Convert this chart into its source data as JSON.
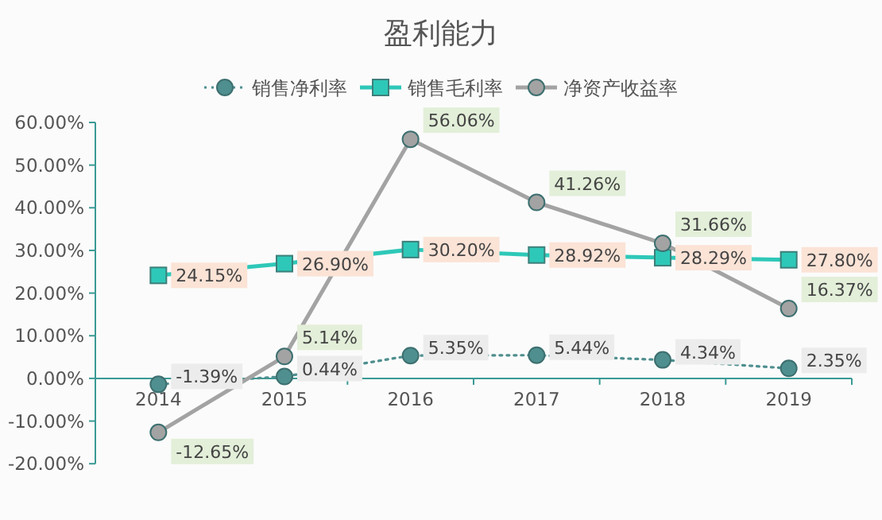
{
  "chart_data": {
    "type": "line",
    "title": "盈利能力",
    "categories": [
      "2014",
      "2015",
      "2016",
      "2017",
      "2018",
      "2019"
    ],
    "series": [
      {
        "name": "销售净利率",
        "color": "#4f8f8f",
        "marker": "circle",
        "line_style": "dotted",
        "values": [
          -1.39,
          0.44,
          5.35,
          5.44,
          4.34,
          2.35
        ],
        "value_labels": [
          "-1.39%",
          "0.44%",
          "5.35%",
          "5.44%",
          "4.34%",
          "2.35%"
        ]
      },
      {
        "name": "销售毛利率",
        "color": "#2ec8b8",
        "marker": "square",
        "line_style": "solid",
        "values": [
          24.15,
          26.9,
          30.2,
          28.92,
          28.29,
          27.8
        ],
        "value_labels": [
          "24.15%",
          "26.90%",
          "30.20%",
          "28.92%",
          "28.29%",
          "27.80%"
        ]
      },
      {
        "name": "净资产收益率",
        "color": "#a3a3a3",
        "marker": "circle",
        "line_style": "solid",
        "values": [
          -12.65,
          5.14,
          56.06,
          41.26,
          31.66,
          16.37
        ],
        "value_labels": [
          "-12.65%",
          "5.14%",
          "56.06%",
          "41.26%",
          "31.66%",
          "16.37%"
        ]
      }
    ],
    "ylim": [
      -20,
      60
    ],
    "yticks": [
      {
        "value": -20,
        "label": "-20.00%"
      },
      {
        "value": -10,
        "label": "-10.00%"
      },
      {
        "value": 0,
        "label": "0.00%"
      },
      {
        "value": 10,
        "label": "10.00%"
      },
      {
        "value": 20,
        "label": "20.00%"
      },
      {
        "value": 30,
        "label": "30.00%"
      },
      {
        "value": 40,
        "label": "40.00%"
      },
      {
        "value": 50,
        "label": "50.00%"
      },
      {
        "value": 60,
        "label": "60.00%"
      }
    ],
    "legend": "top",
    "grid": false
  }
}
